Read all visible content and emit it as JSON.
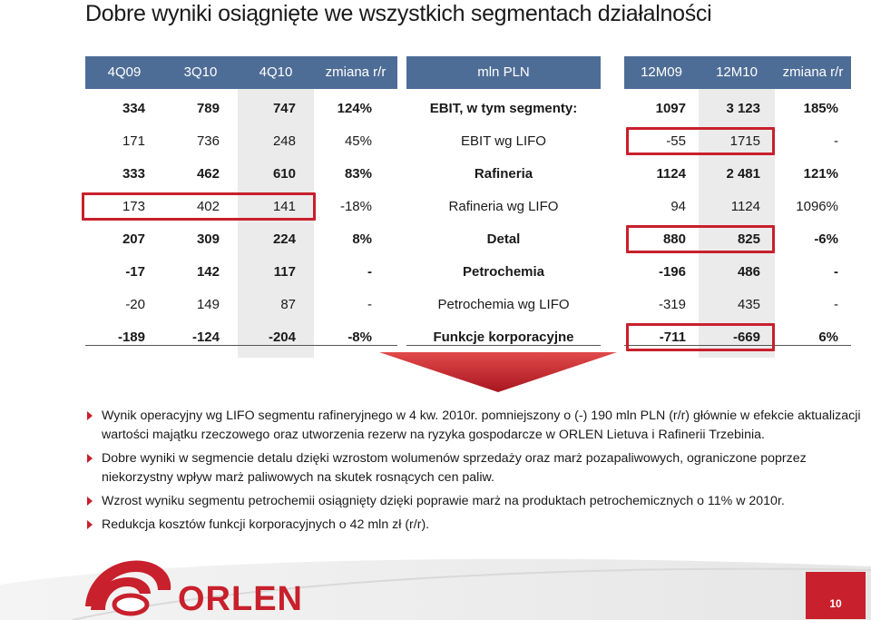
{
  "title": "Dobre wyniki osiągnięte we wszystkich segmentach działalności",
  "header": {
    "left": [
      "4Q09",
      "3Q10",
      "4Q10",
      "zmiana r/r"
    ],
    "mid": "mln PLN",
    "right": [
      "12M09",
      "12M10",
      "zmiana r/r"
    ]
  },
  "rows": [
    {
      "q409": "334",
      "q310": "789",
      "q410": "747",
      "chg_q": "124%",
      "label": "EBIT, w tym segmenty:",
      "m09": "1097",
      "m10": "3 123",
      "chg_m": "185%",
      "bold": true
    },
    {
      "q409": "171",
      "q310": "736",
      "q410": "248",
      "chg_q": "45%",
      "label": "EBIT wg LIFO",
      "m09": "-55",
      "m10": "1715",
      "chg_m": "-",
      "bold": false
    },
    {
      "q409": "333",
      "q310": "462",
      "q410": "610",
      "chg_q": "83%",
      "label": "Rafineria",
      "m09": "1124",
      "m10": "2 481",
      "chg_m": "121%",
      "bold": true
    },
    {
      "q409": "173",
      "q310": "402",
      "q410": "141",
      "chg_q": "-18%",
      "label": "Rafineria wg LIFO",
      "m09": "94",
      "m10": "1124",
      "chg_m": "1096%",
      "bold": false
    },
    {
      "q409": "207",
      "q310": "309",
      "q410": "224",
      "chg_q": "8%",
      "label": "Detal",
      "m09": "880",
      "m10": "825",
      "chg_m": "-6%",
      "bold": true
    },
    {
      "q409": "-17",
      "q310": "142",
      "q410": "117",
      "chg_q": "-",
      "label": "Petrochemia",
      "m09": "-196",
      "m10": "486",
      "chg_m": "-",
      "bold": true
    },
    {
      "q409": "-20",
      "q310": "149",
      "q410": "87",
      "chg_q": "-",
      "label": "Petrochemia wg LIFO",
      "m09": "-319",
      "m10": "435",
      "chg_m": "-",
      "bold": false
    },
    {
      "q409": "-189",
      "q310": "-124",
      "q410": "-204",
      "chg_q": "-8%",
      "label": "Funkcje korporacyjne",
      "m09": "-711",
      "m10": "-669",
      "chg_m": "6%",
      "bold": true
    }
  ],
  "bullets": [
    "Wynik operacyjny wg LIFO segmentu rafineryjnego w 4 kw. 2010r. pomniejszony o (-) 190 mln PLN (r/r) głównie w efekcie aktualizacji wartości majątku rzeczowego oraz utworzenia rezerw na ryzyka gospodarcze w ORLEN Lietuva i Rafinerii Trzebinia.",
    "Dobre wyniki w segmencie detalu dzięki wzrostom wolumenów sprzedaży oraz marż pozapaliwowych, ograniczone poprzez niekorzystny wpływ marż paliwowych na skutek rosnących cen paliw.",
    "Wzrost  wyniku segmentu petrochemii osiągnięty dzięki poprawie marż na produktach petrochemicznych o 11% w 2010r.",
    "Redukcja kosztów funkcji korporacyjnych o 42 mln zł (r/r)."
  ],
  "brand": "ORLEN",
  "page_number": "10",
  "colors": {
    "accent": "#c8202c",
    "header": "#4e6d96",
    "shade": "#ebebeb"
  },
  "icons": [
    "bullet-triangle-icon",
    "down-arrow-icon",
    "orlen-logo-icon"
  ]
}
